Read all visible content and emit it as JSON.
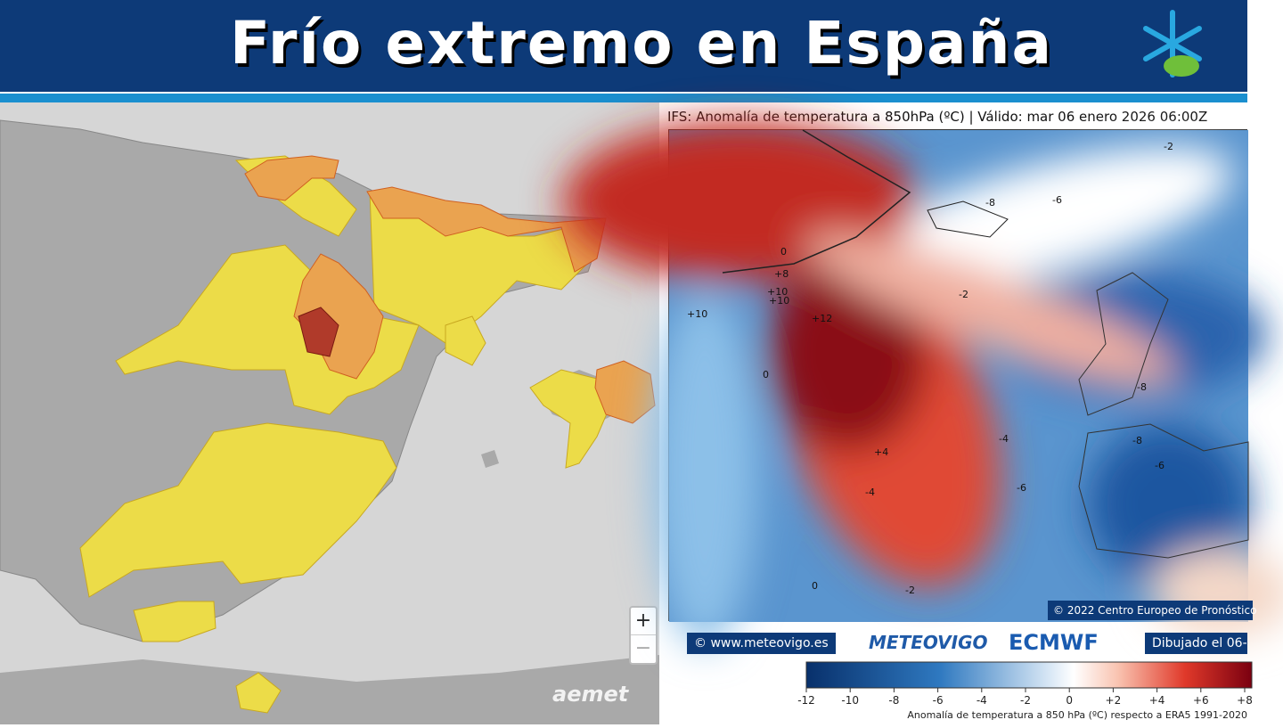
{
  "header": {
    "title": "Frío extremo en España"
  },
  "left_map": {
    "zoom_in": "+",
    "zoom_out": "−",
    "attribution": "aemet"
  },
  "right_map": {
    "title": "IFS: Anomalía de temperatura a 850hPa  (ºC) | Válido: mar 06 enero 2026 06:00Z",
    "contour_labels": [
      "-2",
      "0",
      "+8",
      "+10",
      "+10",
      "-8",
      "-6",
      "-2",
      "+10",
      "+12",
      "0",
      "-4",
      "-4",
      "-8",
      "-6",
      "-8",
      "-6",
      "0",
      "-2",
      "+4"
    ],
    "copyright": "© 2022 Centro Europeo de Pronóstico",
    "footer": {
      "site": "© www.meteovigo.es",
      "logo1": "METEOVIGO",
      "logo2": "ECMWF",
      "drawn": "Dibujado el 06-"
    },
    "colorbar": {
      "ticks": [
        -12,
        -10,
        -8,
        -6,
        -4,
        -2,
        0,
        {
          "value": 2,
          "label": "+2"
        },
        {
          "value": 4,
          "label": "+4"
        },
        {
          "value": 6,
          "label": "+6"
        },
        {
          "value": 8,
          "label": "+8"
        }
      ],
      "caption": "Anomalía de temperatura a 850 hPa (ºC) respecto a ERA5 1991-2020"
    }
  }
}
